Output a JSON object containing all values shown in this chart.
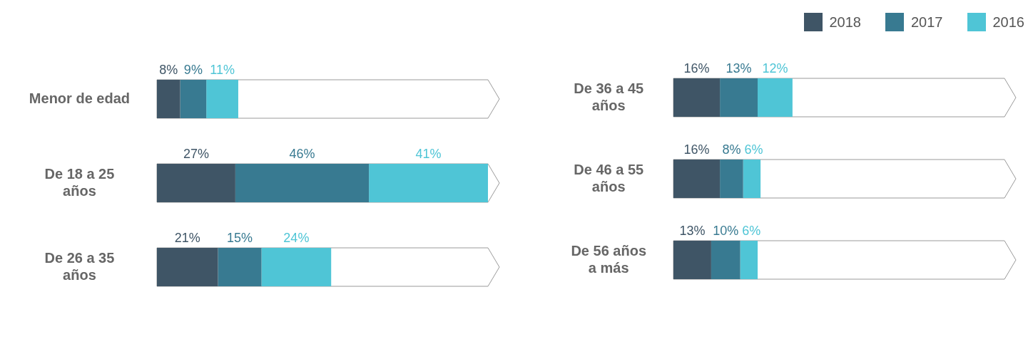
{
  "chart_data": [
    {
      "type": "bar",
      "orientation": "horizontal",
      "stacked": true,
      "categories": [
        "Menor de edad",
        "De 18 a 25 años",
        "De 26 a 35 años"
      ],
      "series": [
        {
          "color": "#3f5566",
          "values": [
            8,
            27,
            21
          ],
          "value_labels": [
            "8%",
            "27%",
            "21%"
          ]
        },
        {
          "color": "#387a91",
          "values": [
            9,
            46,
            15
          ],
          "value_labels": [
            "9%",
            "46%",
            "15%"
          ]
        },
        {
          "color": "#4fc5d6",
          "values": [
            11,
            41,
            24
          ],
          "value_labels": [
            "11%",
            "41%",
            "24%"
          ]
        }
      ],
      "tick_labels": "y",
      "legend": false
    },
    {
      "type": "bar",
      "orientation": "horizontal",
      "stacked": true,
      "categories": [
        "De 36 a 45 años",
        "De 46 a 55 años",
        "De 56 años a más"
      ],
      "series": [
        {
          "name": "2018",
          "color": "#3f5566",
          "values": [
            16,
            16,
            13
          ],
          "value_labels": [
            "16%",
            "16%",
            "13%"
          ]
        },
        {
          "name": "2017",
          "color": "#387a91",
          "values": [
            13,
            8,
            10
          ],
          "value_labels": [
            "13%",
            "8%",
            "10%"
          ]
        },
        {
          "name": "2016",
          "color": "#4fc5d6",
          "values": [
            12,
            6,
            6
          ],
          "value_labels": [
            "12%",
            "6%",
            "6%"
          ]
        }
      ],
      "tick_labels": "y",
      "legend": "top right"
    }
  ]
}
